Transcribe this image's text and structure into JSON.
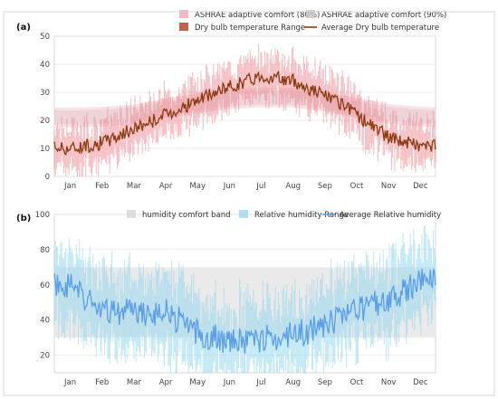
{
  "chart_data": [
    {
      "type": "line",
      "panel_label": "(a)",
      "x_months": [
        "Jan",
        "Feb",
        "Mar",
        "Apr",
        "May",
        "Jun",
        "Jul",
        "Aug",
        "Sep",
        "Oct",
        "Nov",
        "Dec"
      ],
      "ylim": [
        0,
        50
      ],
      "yticks": [
        0,
        10,
        20,
        30,
        40,
        50
      ],
      "grid": true,
      "legend_position": "top-right",
      "legend": [
        {
          "label": "ASHRAE adaptive comfort (80%)",
          "color": "#f2a6b3",
          "kind": "band"
        },
        {
          "label": "ASHRAE adaptive comfort (90%)",
          "color": "#c8c8c8",
          "kind": "band"
        },
        {
          "label": "Dry bulb temperature Range",
          "color": "#b5391f",
          "kind": "range"
        },
        {
          "label": "Average Dry bulb temperature",
          "color": "#8b3a0f",
          "kind": "line"
        }
      ],
      "comfort_band_80": {
        "month_lower": [
          17.5,
          17.8,
          18.6,
          20.8,
          22.6,
          24.0,
          24.7,
          24.6,
          23.2,
          21.0,
          18.8,
          17.8
        ],
        "month_upper": [
          24.5,
          24.8,
          25.6,
          27.8,
          29.6,
          31.0,
          31.7,
          31.6,
          30.2,
          28.0,
          25.8,
          24.8
        ]
      },
      "comfort_band_90": {
        "month_lower": [
          18.5,
          18.8,
          19.6,
          21.8,
          23.6,
          25.0,
          25.7,
          25.6,
          24.2,
          22.0,
          19.8,
          18.8
        ],
        "month_upper": [
          23.5,
          23.8,
          24.6,
          26.8,
          28.6,
          30.0,
          30.7,
          30.6,
          29.2,
          27.0,
          24.8,
          23.8
        ]
      },
      "series": [
        {
          "name": "Average Dry bulb temperature",
          "month_mean": [
            10,
            12,
            17,
            22,
            27,
            32,
            36,
            34,
            29,
            22,
            14,
            11
          ]
        }
      ],
      "range_spread": 7
    },
    {
      "type": "line",
      "panel_label": "(b)",
      "x_months": [
        "Jan",
        "Feb",
        "Mar",
        "Apr",
        "May",
        "Jun",
        "Jul",
        "Aug",
        "Sep",
        "Oct",
        "Nov",
        "Dec"
      ],
      "ylim": [
        10,
        100
      ],
      "yticks": [
        20,
        40,
        60,
        80,
        100
      ],
      "grid": true,
      "legend_position": "top-right",
      "legend": [
        {
          "label": "humidity comfort band",
          "color": "#d6d6d6",
          "kind": "band"
        },
        {
          "label": "Relative humidity Range",
          "color": "#9ad8f0",
          "kind": "range"
        },
        {
          "label": "Average Relative humidity",
          "color": "#5b9ee8",
          "kind": "line"
        }
      ],
      "comfort_band": [
        30,
        70
      ],
      "series": [
        {
          "name": "Average Relative humidity",
          "month_mean": [
            60,
            45,
            44,
            45,
            32,
            28,
            29,
            31,
            37,
            45,
            52,
            62
          ]
        }
      ],
      "range_spread": 20
    }
  ]
}
